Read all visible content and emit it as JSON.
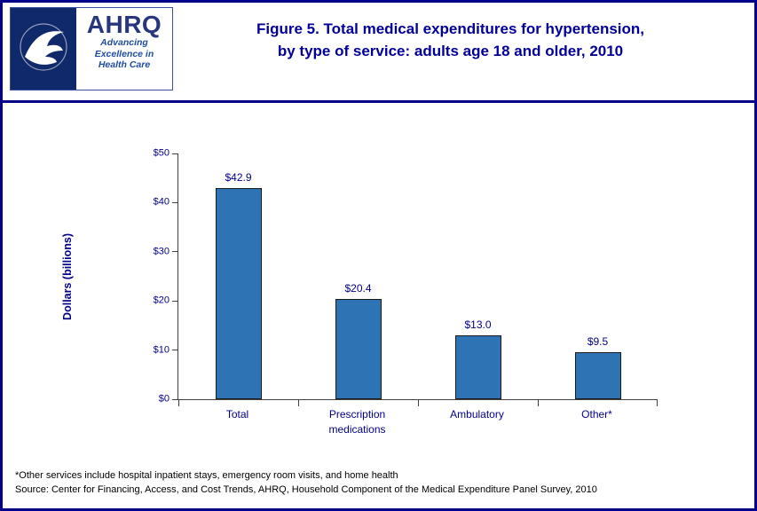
{
  "header": {
    "title_line1": "Figure 5. Total medical expenditures for hypertension,",
    "title_line2": "by type of service: adults age 18 and older, 2010",
    "logo": {
      "ahrq_text": "AHRQ",
      "tagline_line1": "Advancing",
      "tagline_line2": "Excellence in",
      "tagline_line3": "Health Care"
    }
  },
  "chart_data": {
    "type": "bar",
    "categories": [
      "Total",
      "Prescription\nmedications",
      "Ambulatory",
      "Other*"
    ],
    "values": [
      42.9,
      20.4,
      13.0,
      9.5
    ],
    "value_labels": [
      "$42.9",
      "$20.4",
      "$13.0",
      "$9.5"
    ],
    "title": "Figure 5. Total medical expenditures for hypertension, by type of service: adults age 18 and older, 2010",
    "xlabel": "",
    "ylabel": "Dollars (billions)",
    "ylim": [
      0,
      50
    ],
    "yticks": [
      "$0",
      "$10",
      "$20",
      "$30",
      "$40",
      "$50"
    ],
    "grid": false,
    "legend": false,
    "bar_color": "#2E74B5"
  },
  "footnotes": {
    "line1": "*Other services include hospital inpatient stays, emergency room visits, and home health",
    "line2": "Source: Center for Financing, Access, and Cost Trends, AHRQ, Household Component of the Medical Expenditure Panel Survey, 2010"
  },
  "colors": {
    "border_navy": "#00008B",
    "title_navy": "#000099",
    "bar_blue": "#2E74B5"
  }
}
